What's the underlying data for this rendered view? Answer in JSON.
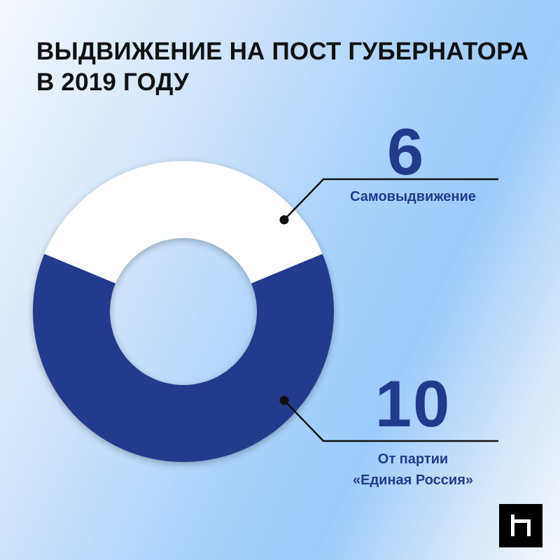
{
  "title": {
    "line1": "ВЫДВИЖЕНИЕ НА ПОСТ ГУБЕРНАТОРА",
    "line2": "В 2019 ГОДУ"
  },
  "chart_data": {
    "type": "pie",
    "title": "ВЫДВИЖЕНИЕ НА ПОСТ ГУБЕРНАТОРА В 2019 ГОДУ",
    "categories": [
      "Самовыдвижение",
      "От партии «Единая Россия»"
    ],
    "values": [
      6,
      10
    ],
    "colors": [
      "#ffffff",
      "#223a8c"
    ],
    "donut": true,
    "value_labels": [
      "6",
      "10"
    ],
    "category_labels": [
      [
        "Самовыдвижение"
      ],
      [
        "От партии",
        "«Единая Россия»"
      ]
    ]
  },
  "colors": {
    "accent": "#223a8c",
    "title": "#111111"
  },
  "logo": {
    "icon": "publisher-logo-icon"
  }
}
